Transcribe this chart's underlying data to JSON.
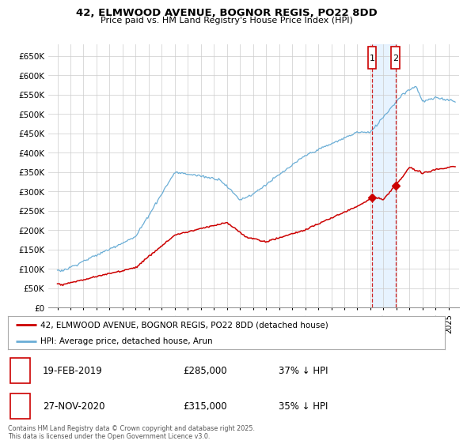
{
  "title": "42, ELMWOOD AVENUE, BOGNOR REGIS, PO22 8DD",
  "subtitle": "Price paid vs. HM Land Registry's House Price Index (HPI)",
  "ylim": [
    0,
    680000
  ],
  "yticks": [
    0,
    50000,
    100000,
    150000,
    200000,
    250000,
    300000,
    350000,
    400000,
    450000,
    500000,
    550000,
    600000,
    650000
  ],
  "ytick_labels": [
    "£0",
    "£50K",
    "£100K",
    "£150K",
    "£200K",
    "£250K",
    "£300K",
    "£350K",
    "£400K",
    "£450K",
    "£500K",
    "£550K",
    "£600K",
    "£650K"
  ],
  "hpi_color": "#6baed6",
  "price_color": "#cc0000",
  "shade_color": "#ddeeff",
  "marker1_date": 2019.12,
  "marker1_price": 285000,
  "marker2_date": 2020.92,
  "marker2_price": 315000,
  "legend_line1": "42, ELMWOOD AVENUE, BOGNOR REGIS, PO22 8DD (detached house)",
  "legend_line2": "HPI: Average price, detached house, Arun",
  "table_row1": [
    "1",
    "19-FEB-2019",
    "£285,000",
    "37% ↓ HPI"
  ],
  "table_row2": [
    "2",
    "27-NOV-2020",
    "£315,000",
    "35% ↓ HPI"
  ],
  "footnote": "Contains HM Land Registry data © Crown copyright and database right 2025.\nThis data is licensed under the Open Government Licence v3.0.",
  "background_color": "#ffffff",
  "grid_color": "#cccccc",
  "xlim_left": 1994.3,
  "xlim_right": 2025.8
}
